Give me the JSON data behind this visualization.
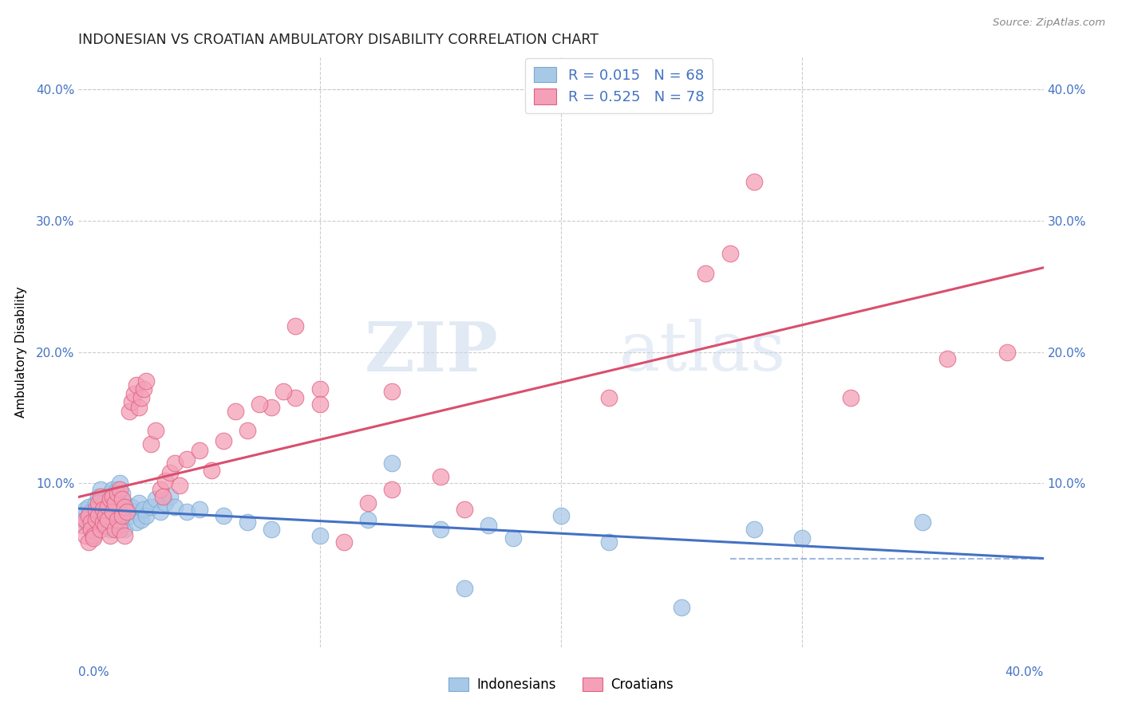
{
  "title": "INDONESIAN VS CROATIAN AMBULATORY DISABILITY CORRELATION CHART",
  "source": "Source: ZipAtlas.com",
  "ylabel": "Ambulatory Disability",
  "xlim": [
    0.0,
    0.4
  ],
  "ylim": [
    0.0,
    0.42
  ],
  "watermark_zip": "ZIP",
  "watermark_atlas": "atlas",
  "indonesian_R": 0.015,
  "indonesian_N": 68,
  "croatian_R": 0.525,
  "croatian_N": 78,
  "indonesian_color": "#a8c8e8",
  "croatian_color": "#f4a0b8",
  "indonesian_edge_color": "#7aaad0",
  "croatian_edge_color": "#e06080",
  "indonesian_line_color": "#4472c4",
  "croatian_line_color": "#d94f6e",
  "grid_color": "#cccccc",
  "tick_color": "#4472c4",
  "title_color": "#222222",
  "source_color": "#888888",
  "legend_edge_color": "#dddddd",
  "yticks": [
    0.0,
    0.1,
    0.2,
    0.3,
    0.4
  ],
  "ytick_labels": [
    "",
    "10.0%",
    "20.0%",
    "30.0%",
    "40.0%"
  ],
  "indo_seed_x": [
    0.002,
    0.003,
    0.003,
    0.004,
    0.004,
    0.005,
    0.005,
    0.006,
    0.006,
    0.007,
    0.007,
    0.008,
    0.008,
    0.009,
    0.009,
    0.01,
    0.01,
    0.011,
    0.011,
    0.012,
    0.012,
    0.013,
    0.013,
    0.014,
    0.014,
    0.015,
    0.015,
    0.016,
    0.016,
    0.017,
    0.017,
    0.018,
    0.018,
    0.019,
    0.019,
    0.02,
    0.021,
    0.022,
    0.023,
    0.024,
    0.025,
    0.026,
    0.027,
    0.028,
    0.03,
    0.032,
    0.034,
    0.036,
    0.038,
    0.04,
    0.045,
    0.05,
    0.06,
    0.07,
    0.08,
    0.1,
    0.12,
    0.15,
    0.18,
    0.22,
    0.16,
    0.25,
    0.3,
    0.13,
    0.17,
    0.2,
    0.28,
    0.35
  ],
  "indo_seed_y": [
    0.075,
    0.08,
    0.07,
    0.082,
    0.068,
    0.078,
    0.065,
    0.072,
    0.06,
    0.075,
    0.085,
    0.08,
    0.09,
    0.07,
    0.095,
    0.075,
    0.085,
    0.08,
    0.072,
    0.088,
    0.078,
    0.092,
    0.065,
    0.095,
    0.082,
    0.088,
    0.07,
    0.095,
    0.075,
    0.1,
    0.068,
    0.092,
    0.078,
    0.085,
    0.065,
    0.08,
    0.075,
    0.082,
    0.078,
    0.07,
    0.085,
    0.072,
    0.08,
    0.075,
    0.082,
    0.088,
    0.078,
    0.085,
    0.09,
    0.082,
    0.078,
    0.08,
    0.075,
    0.07,
    0.065,
    0.06,
    0.072,
    0.065,
    0.058,
    0.055,
    0.02,
    0.005,
    0.058,
    0.115,
    0.068,
    0.075,
    0.065,
    0.07
  ],
  "croat_seed_x": [
    0.002,
    0.003,
    0.003,
    0.004,
    0.004,
    0.005,
    0.005,
    0.006,
    0.006,
    0.007,
    0.007,
    0.008,
    0.008,
    0.009,
    0.009,
    0.01,
    0.01,
    0.011,
    0.011,
    0.012,
    0.012,
    0.013,
    0.013,
    0.014,
    0.014,
    0.015,
    0.015,
    0.016,
    0.016,
    0.017,
    0.017,
    0.018,
    0.018,
    0.019,
    0.019,
    0.02,
    0.021,
    0.022,
    0.023,
    0.024,
    0.025,
    0.026,
    0.027,
    0.028,
    0.03,
    0.032,
    0.034,
    0.036,
    0.038,
    0.04,
    0.045,
    0.05,
    0.06,
    0.07,
    0.08,
    0.09,
    0.1,
    0.09,
    0.1,
    0.13,
    0.13,
    0.15,
    0.16,
    0.22,
    0.26,
    0.27,
    0.28,
    0.32,
    0.36,
    0.385,
    0.035,
    0.042,
    0.055,
    0.065,
    0.075,
    0.085,
    0.11,
    0.12
  ],
  "croat_seed_y": [
    0.068,
    0.072,
    0.06,
    0.075,
    0.055,
    0.07,
    0.065,
    0.06,
    0.058,
    0.072,
    0.08,
    0.075,
    0.085,
    0.065,
    0.09,
    0.07,
    0.08,
    0.075,
    0.068,
    0.082,
    0.072,
    0.088,
    0.06,
    0.09,
    0.078,
    0.085,
    0.065,
    0.092,
    0.072,
    0.095,
    0.065,
    0.088,
    0.075,
    0.082,
    0.06,
    0.078,
    0.155,
    0.162,
    0.168,
    0.175,
    0.158,
    0.165,
    0.172,
    0.178,
    0.13,
    0.14,
    0.095,
    0.102,
    0.108,
    0.115,
    0.118,
    0.125,
    0.132,
    0.14,
    0.158,
    0.165,
    0.172,
    0.22,
    0.16,
    0.17,
    0.095,
    0.105,
    0.08,
    0.165,
    0.26,
    0.275,
    0.33,
    0.165,
    0.195,
    0.2,
    0.09,
    0.098,
    0.11,
    0.155,
    0.16,
    0.17,
    0.055,
    0.085
  ]
}
